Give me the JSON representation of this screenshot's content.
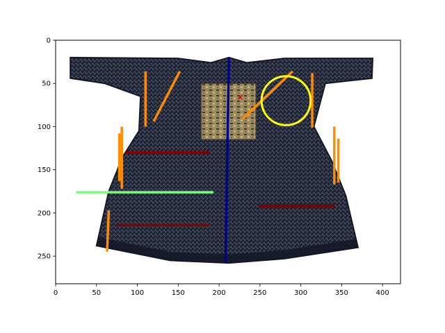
{
  "chart_data": {
    "type": "image-overlay",
    "title": "",
    "xlabel": "",
    "ylabel": "",
    "xlim": [
      0,
      422
    ],
    "ylim": [
      282,
      0
    ],
    "x_ticks": [
      0,
      50,
      100,
      150,
      200,
      250,
      300,
      350,
      400
    ],
    "y_ticks": [
      0,
      50,
      100,
      150,
      200,
      250
    ],
    "grid": false,
    "image": {
      "subject": "dark blue mesh robe (garment laid flat)",
      "color": "#1d2333",
      "extent": [
        0,
        422,
        282,
        0
      ]
    },
    "overlays": {
      "segments": [
        {
          "color": "#ff8c00",
          "points": [
            [
              110,
              36
            ],
            [
              110,
              100
            ]
          ]
        },
        {
          "color": "#ff8c00",
          "points": [
            [
              120,
              94
            ],
            [
              152,
              36
            ]
          ]
        },
        {
          "color": "#ff8c00",
          "points": [
            [
              78,
              108
            ],
            [
              78,
              163
            ]
          ]
        },
        {
          "color": "#ff8c00",
          "points": [
            [
              81,
              100
            ],
            [
              81,
              172
            ]
          ]
        },
        {
          "color": "#ff8c00",
          "points": [
            [
              63,
              245
            ],
            [
              65,
              197
            ]
          ]
        },
        {
          "color": "#ff8c00",
          "points": [
            [
              229,
              91
            ],
            [
              290,
              36
            ]
          ]
        },
        {
          "color": "#ff8c00",
          "points": [
            [
              314,
              38
            ],
            [
              314,
              101
            ]
          ]
        },
        {
          "color": "#ff8c00",
          "points": [
            [
              341,
              100
            ],
            [
              341,
              167
            ]
          ]
        },
        {
          "color": "#ff8c00",
          "points": [
            [
              346,
              114
            ],
            [
              346,
              165
            ]
          ]
        },
        {
          "color": "#800000",
          "points": [
            [
              85,
              130
            ],
            [
              188,
              130
            ]
          ]
        },
        {
          "color": "#800000",
          "points": [
            [
              75,
              214
            ],
            [
              188,
              214
            ]
          ]
        },
        {
          "color": "#800000",
          "points": [
            [
              249,
              192
            ],
            [
              342,
              192
            ]
          ]
        },
        {
          "color": "#00008b",
          "points": [
            [
              212,
              20
            ],
            [
              208,
              258
            ]
          ]
        },
        {
          "color": "#7cfc7c",
          "points": [
            [
              25,
              176
            ],
            [
              193,
              176
            ]
          ]
        }
      ],
      "circles": [
        {
          "color": "#ffff00",
          "center": [
            282,
            70
          ],
          "radius": 30
        }
      ],
      "markers": [
        {
          "color": "#cc0000",
          "point": [
            226,
            66
          ],
          "shape": "x"
        }
      ]
    }
  }
}
